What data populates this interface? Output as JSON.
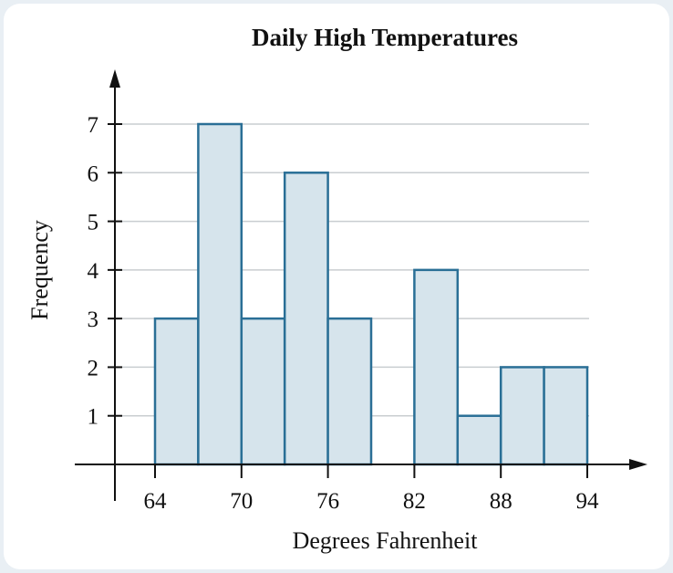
{
  "chart_data": {
    "type": "bar",
    "title": "Daily High Temperatures",
    "xlabel": "Degrees Fahrenheit",
    "ylabel": "Frequency",
    "bin_width": 3,
    "bins": [
      {
        "start": 64,
        "end": 67,
        "value": 3
      },
      {
        "start": 67,
        "end": 70,
        "value": 7
      },
      {
        "start": 70,
        "end": 73,
        "value": 3
      },
      {
        "start": 73,
        "end": 76,
        "value": 6
      },
      {
        "start": 76,
        "end": 79,
        "value": 3
      },
      {
        "start": 79,
        "end": 82,
        "value": 0
      },
      {
        "start": 82,
        "end": 85,
        "value": 4
      },
      {
        "start": 85,
        "end": 88,
        "value": 1
      },
      {
        "start": 88,
        "end": 91,
        "value": 2
      },
      {
        "start": 91,
        "end": 94,
        "value": 2
      }
    ],
    "xticks": [
      64,
      70,
      76,
      82,
      88,
      94
    ],
    "yticks": [
      1,
      2,
      3,
      4,
      5,
      6,
      7
    ],
    "xlim": [
      64,
      94
    ],
    "ylim": [
      0,
      7
    ],
    "grid": true,
    "colors": {
      "bar_fill": "#d6e4ec",
      "bar_stroke": "#2a6f96",
      "grid": "#c9cdd0",
      "axis": "#111111"
    }
  }
}
